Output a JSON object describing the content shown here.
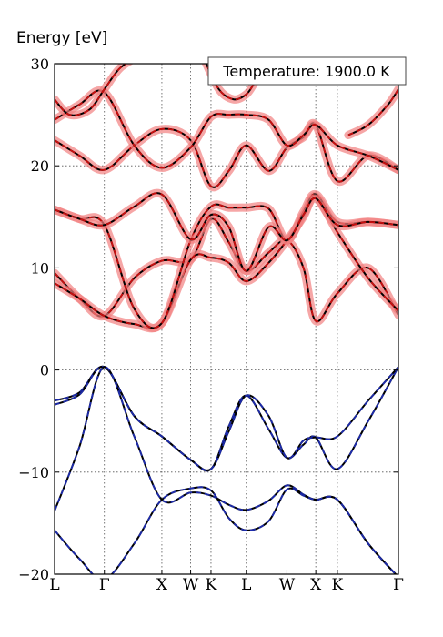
{
  "chart_data": {
    "type": "line",
    "title": "",
    "xlabel": "",
    "ylabel": "Energy [eV]",
    "ylim": [
      -20,
      30
    ],
    "yticks": [
      -20,
      -10,
      0,
      10,
      20,
      30
    ],
    "grid": "dotted vertical lines at k-points, dotted horizontal lines at y-ticks",
    "annotation": "Temperature: 1900.0 K",
    "annotation_position": "top-right",
    "kpoints": [
      {
        "label": "L",
        "x": 0
      },
      {
        "label": "Γ",
        "x": 1
      },
      {
        "label": "X",
        "x": 2.155
      },
      {
        "label": "W",
        "x": 2.733
      },
      {
        "label": "K",
        "x": 3.142
      },
      {
        "label": "L",
        "x": 3.851
      },
      {
        "label": "W",
        "x": 4.668
      },
      {
        "label": "X",
        "x": 5.247
      },
      {
        "label": "K",
        "x": 5.681
      },
      {
        "label": "Γ",
        "x": 6.907
      }
    ],
    "valence_color": "#1f2fbf",
    "conduction_color": "#e01010",
    "band_color_black": "#000000",
    "uncertainty_color": "#f28080",
    "valence_bands": [
      {
        "x": [
          0,
          0.5,
          1,
          1.6,
          2.155,
          2.733,
          3.142,
          3.5,
          3.851,
          4.3,
          4.668,
          5.0,
          5.247,
          5.681,
          6.3,
          6.907
        ],
        "y": [
          -3.0,
          -2.2,
          0.3,
          -4.5,
          -6.5,
          -8.8,
          -9.7,
          -5.5,
          -2.5,
          -5.8,
          -8.6,
          -7.3,
          -6.6,
          -9.7,
          -5.0,
          0.3
        ]
      },
      {
        "x": [
          0,
          0.5,
          1,
          1.6,
          2.155,
          2.733,
          3.142,
          3.5,
          3.851,
          4.3,
          4.668,
          5.0,
          5.247,
          5.681,
          6.3,
          6.907
        ],
        "y": [
          -3.4,
          -2.4,
          0.3,
          -4.5,
          -6.5,
          -8.8,
          -9.7,
          -6.0,
          -2.5,
          -4.5,
          -8.6,
          -6.9,
          -6.6,
          -6.5,
          -3.0,
          0.3
        ]
      },
      {
        "x": [
          0,
          0.5,
          1,
          1.6,
          2.155,
          2.733,
          3.142,
          3.5,
          3.851,
          4.3,
          4.668,
          5.0,
          5.247,
          5.681,
          6.3,
          6.907
        ],
        "y": [
          -13.8,
          -7.5,
          0.3,
          -6.5,
          -12.7,
          -12.0,
          -12.3,
          -13.2,
          -13.7,
          -12.8,
          -11.3,
          -12.2,
          -12.7,
          -12.7,
          -17.0,
          -20.3
        ]
      },
      {
        "x": [
          0,
          0.5,
          1,
          1.6,
          2.155,
          2.733,
          3.142,
          3.5,
          3.851,
          4.3,
          4.668,
          5.0,
          5.247,
          5.681,
          6.3,
          6.907
        ],
        "y": [
          -15.7,
          -18.5,
          -20.5,
          -17.0,
          -12.7,
          -11.6,
          -11.8,
          -14.5,
          -15.7,
          -14.8,
          -11.7,
          -12.3,
          -12.7,
          -12.7,
          -17.0,
          -20.3
        ]
      }
    ],
    "conduction_bands": [
      {
        "x": [
          0,
          0.5,
          1,
          1.6,
          2.155,
          2.733,
          3.142,
          3.5,
          3.851,
          4.3,
          4.668,
          5.0,
          5.247,
          5.681,
          6.3,
          6.907
        ],
        "y": [
          9.5,
          7.0,
          5.3,
          9.0,
          10.7,
          10.8,
          14.8,
          12.5,
          9.7,
          11.5,
          12.7,
          10.0,
          4.8,
          7.5,
          10.0,
          5.4
        ]
      },
      {
        "x": [
          0,
          0.5,
          1,
          1.6,
          2.155,
          2.733,
          3.142,
          3.5,
          3.851,
          4.3,
          4.668,
          5.0,
          5.247,
          5.681,
          6.3,
          6.907
        ],
        "y": [
          8.5,
          7.0,
          5.3,
          4.5,
          4.6,
          10.8,
          11.0,
          10.5,
          8.7,
          10.5,
          12.7,
          15.0,
          17.0,
          13.5,
          9.0,
          5.8
        ]
      },
      {
        "x": [
          0,
          0.5,
          1,
          1.6,
          2.155,
          2.733,
          3.142,
          3.5,
          3.851,
          4.3,
          4.668,
          5.0,
          5.247,
          5.681,
          6.3,
          6.907
        ],
        "y": [
          15.7,
          14.8,
          14.2,
          6.0,
          4.6,
          12.7,
          16.0,
          15.9,
          15.9,
          15.8,
          12.7,
          15.5,
          17.2,
          14.5,
          14.5,
          14.2
        ]
      },
      {
        "x": [
          0,
          0.5,
          1,
          1.6,
          2.155,
          2.733,
          3.142,
          3.5,
          3.851,
          4.3,
          4.668,
          5.0,
          5.247,
          5.681,
          6.3,
          6.907
        ],
        "y": [
          15.7,
          14.8,
          14.2,
          16.0,
          17.2,
          12.8,
          15.2,
          14.0,
          9.7,
          14.0,
          12.7,
          15.2,
          16.8,
          14.2,
          14.5,
          14.2
        ]
      },
      {
        "x": [
          0,
          0.5,
          1,
          1.6,
          2.155,
          2.733,
          3.142,
          3.5,
          3.851,
          4.3,
          4.668,
          5.0,
          5.247,
          5.681,
          6.3,
          6.907
        ],
        "y": [
          22.5,
          21.0,
          19.6,
          22.0,
          23.6,
          22.5,
          18.0,
          19.5,
          22.0,
          19.5,
          21.8,
          22.8,
          24.0,
          18.5,
          21.0,
          19.6
        ]
      },
      {
        "x": [
          0,
          0.5,
          1,
          1.6,
          2.155,
          2.733,
          3.142,
          3.5,
          3.851,
          4.3,
          4.668,
          5.0,
          5.247,
          5.681,
          6.3,
          6.907
        ],
        "y": [
          24.5,
          26.0,
          27.2,
          22.0,
          19.8,
          21.8,
          24.8,
          25.0,
          25.0,
          24.5,
          22.0,
          23.0,
          24.0,
          22.0,
          21.0,
          19.6
        ]
      },
      {
        "x": [
          0,
          0.3,
          0.7,
          1,
          1.3,
          1.6
        ],
        "y": [
          26.5,
          25.0,
          25.5,
          27.5,
          29.5,
          30.5
        ]
      },
      {
        "x": [
          3.0,
          3.3,
          3.6,
          3.851,
          4.0
        ],
        "y": [
          30.5,
          27.5,
          26.5,
          27.0,
          28.0
        ]
      },
      {
        "x": [
          5.9,
          6.3,
          6.7,
          6.907
        ],
        "y": [
          23.0,
          24.0,
          26.0,
          27.5
        ]
      }
    ]
  }
}
